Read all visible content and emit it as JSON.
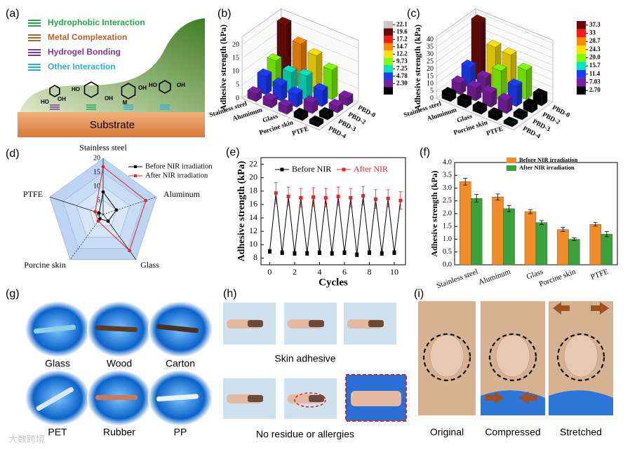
{
  "panel_labels": [
    "(a)",
    "(b)",
    "(c)",
    "(d)",
    "(e)",
    "(f)",
    "(g)",
    "(h)",
    "(i)"
  ],
  "panel_a": {
    "legend": [
      "Hydrophobic Interaction",
      "Metal Complexation",
      "Hydrogel Bonding",
      "Other Interaction"
    ],
    "chem_labels": [
      "HO",
      "OH",
      "HO",
      "OH",
      "M",
      "OH",
      "HO",
      "OH"
    ],
    "substrate": "Substrate"
  },
  "chart_data": [
    {
      "type": "bar3d",
      "ylabel": "Adhesive strength (kPa)",
      "categories": [
        "Stainless steel",
        "Aluminum",
        "Glass",
        "Porcine skin",
        "PTFE"
      ],
      "series": [
        {
          "name": "PBD-0",
          "values": [
            21,
            16,
            14,
            11,
            3
          ]
        },
        {
          "name": "PBD-2",
          "values": [
            10,
            8,
            9,
            6,
            2.5
          ]
        },
        {
          "name": "PBD-3",
          "values": [
            7,
            6,
            5,
            4,
            2
          ]
        },
        {
          "name": "PBD-4",
          "values": [
            3,
            3,
            3,
            2,
            1.5
          ]
        }
      ],
      "zlim": [
        0,
        23
      ],
      "zticks": [
        0,
        5,
        10,
        15,
        20
      ],
      "colorbar": {
        "levels": [
          22.1,
          19.6,
          17.2,
          14.7,
          12.2,
          9.73,
          7.25,
          4.78,
          {
            "value": 2.3,
            "label": "2.30"
          }
        ],
        "colors": [
          "#c8c8c8",
          "#6b0a0a",
          "#ff1a1a",
          "#ff8c00",
          "#ffe000",
          "#7fff00",
          "#00e5c0",
          "#1a3cff",
          "#7a1fa2",
          "#000000"
        ]
      }
    },
    {
      "type": "bar3d",
      "ylabel": "Adhesive strength (kPa)",
      "categories": [
        "Stainless steel",
        "Aluminum",
        "Glass",
        "Porcine skin",
        "PTFE"
      ],
      "series": [
        {
          "name": "PBD-0",
          "values": [
            40,
            27,
            26,
            20,
            7
          ]
        },
        {
          "name": "PBD-2",
          "values": [
            14,
            11,
            20,
            14,
            5
          ]
        },
        {
          "name": "PBD-3",
          "values": [
            8,
            9,
            10,
            9,
            3
          ]
        },
        {
          "name": "PBD-4",
          "values": [
            5,
            5,
            4,
            4,
            2
          ]
        }
      ],
      "zlim": [
        0,
        42
      ],
      "zticks": [
        0,
        5,
        10,
        15,
        20,
        25,
        30,
        35,
        40
      ],
      "colorbar": {
        "levels": [
          37.3,
          33.0,
          28.7,
          24.3,
          {
            "value": 20.0,
            "label": "20.0"
          },
          15.7,
          11.4,
          7.03,
          {
            "value": 2.7,
            "label": "2.70"
          }
        ],
        "colors": [
          "#6b0a0a",
          "#ff1a1a",
          "#ff8c00",
          "#ffe000",
          "#7fff00",
          "#00e5c0",
          "#1a3cff",
          "#7a1fa2",
          "#000000"
        ]
      }
    },
    {
      "type": "radar",
      "categories": [
        "Stainless steel",
        "Aluminum",
        "Glass",
        "Porcine skin",
        "PTFE"
      ],
      "series": [
        {
          "name": "Before NIR irradiation",
          "color": "#000000",
          "values": [
            8,
            5,
            3,
            2,
            1.5
          ]
        },
        {
          "name": "After NIR irradiation",
          "color": "#e8232a",
          "values": [
            17,
            16,
            16,
            3,
            3
          ]
        }
      ],
      "rlim": [
        0,
        20
      ],
      "rticks": [
        0,
        5,
        10,
        15,
        20
      ]
    },
    {
      "type": "line",
      "ylabel": "Adhesive strength (kPa)",
      "xlabel": "Cycles",
      "series": [
        {
          "name": "Before NIR",
          "color": "#000000",
          "x": [
            0,
            1,
            2,
            3,
            4,
            5,
            6,
            7,
            8,
            9,
            10
          ],
          "values": [
            9.0,
            8.8,
            8.7,
            8.7,
            8.8,
            8.7,
            8.8,
            8.5,
            8.8,
            8.7,
            8.8
          ],
          "errors": [
            0.3,
            0.3,
            0.3,
            0.3,
            0.3,
            0.3,
            0.3,
            0.3,
            0.3,
            0.3,
            0.3
          ]
        },
        {
          "name": "After NIR",
          "color": "#e8232a",
          "x": [
            0.5,
            1.5,
            2.5,
            3.5,
            4.5,
            5.5,
            6.5,
            7.5,
            8.5,
            9.5,
            10.5
          ],
          "values": [
            17.7,
            17.2,
            17.0,
            17.1,
            17.0,
            17.2,
            17.0,
            17.3,
            16.8,
            16.9,
            16.6
          ],
          "errors": [
            1.6,
            1.4,
            1.4,
            1.4,
            1.4,
            1.4,
            1.4,
            1.4,
            1.4,
            1.3,
            1.3
          ]
        }
      ],
      "xlim": [
        -0.7,
        10.9
      ],
      "xticks": [
        0,
        2,
        4,
        6,
        8,
        10
      ],
      "ylim": [
        7,
        23
      ],
      "yticks": [
        8,
        10,
        12,
        14,
        16,
        18,
        20,
        22
      ]
    },
    {
      "type": "bar",
      "ylabel": "Adhesive strength (kPa)",
      "categories": [
        "Stainless steel",
        "Aluminum",
        "Glass",
        "Porcine skin",
        "PTFE"
      ],
      "series": [
        {
          "name": "Before NIR irradiation",
          "color": "#f28c28",
          "values": [
            3.25,
            2.65,
            2.08,
            1.38,
            1.58
          ],
          "errors": [
            0.13,
            0.12,
            0.08,
            0.08,
            0.07
          ]
        },
        {
          "name": "After NIR irradiation",
          "color": "#3aa23a",
          "values": [
            2.6,
            2.2,
            1.65,
            1.0,
            1.2
          ],
          "errors": [
            0.15,
            0.12,
            0.08,
            0.05,
            0.1
          ]
        }
      ],
      "ylim": [
        0,
        4
      ],
      "yticks": [
        {
          "value": 0,
          "label": "0.0"
        },
        0.5,
        {
          "value": 1,
          "label": "1.0"
        },
        1.5,
        {
          "value": 2,
          "label": "2.0"
        },
        2.5,
        {
          "value": 3,
          "label": "3.0"
        },
        3.5,
        {
          "value": 4,
          "label": "4.0"
        }
      ]
    }
  ],
  "panel_g": {
    "captions": [
      "Glass",
      "Wood",
      "Carton",
      "PET",
      "Rubber",
      "PP"
    ]
  },
  "panel_h": {
    "captions": [
      "Skin adhesive",
      "No residue or allergies"
    ]
  },
  "panel_i": {
    "captions": [
      "Original",
      "Compressed",
      "Stretched"
    ]
  },
  "watermark": "大数跨境"
}
